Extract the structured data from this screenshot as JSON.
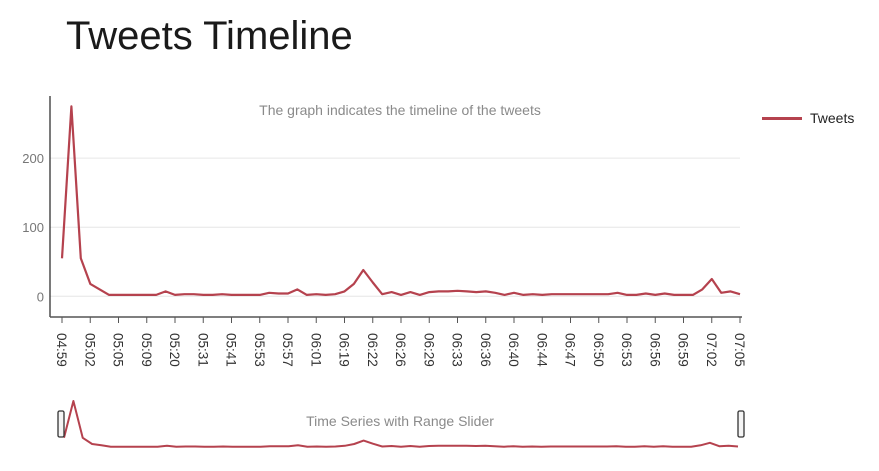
{
  "page": {
    "title": "Tweets Timeline"
  },
  "legend": {
    "label": "Tweets",
    "color": "#b5424e"
  },
  "chart_data": {
    "type": "line",
    "title": "The graph indicates the timeline of the tweets",
    "xlabel": "",
    "ylabel": "",
    "ylim": [
      -30,
      290
    ],
    "yticks": [
      0,
      100,
      200
    ],
    "grid": true,
    "legend_position": "top-right",
    "x_tick_labels": [
      "04:59",
      "05:02",
      "05:05",
      "05:09",
      "05:20",
      "05:31",
      "05:41",
      "05:53",
      "05:57",
      "06:01",
      "06:19",
      "06:22",
      "06:26",
      "06:29",
      "06:33",
      "06:36",
      "06:40",
      "06:44",
      "06:47",
      "06:50",
      "06:53",
      "06:56",
      "06:59",
      "07:02",
      "07:05"
    ],
    "series": [
      {
        "name": "Tweets",
        "color": "#b5424e",
        "values": [
          55,
          275,
          55,
          18,
          10,
          2,
          2,
          2,
          2,
          2,
          2,
          7,
          2,
          3,
          3,
          2,
          2,
          3,
          2,
          2,
          2,
          2,
          5,
          4,
          4,
          10,
          2,
          3,
          2,
          3,
          7,
          18,
          38,
          20,
          3,
          6,
          2,
          6,
          2,
          6,
          7,
          7,
          8,
          7,
          6,
          7,
          5,
          2,
          5,
          2,
          3,
          2,
          3,
          3,
          3,
          3,
          3,
          3,
          3,
          5,
          2,
          2,
          4,
          2,
          4,
          2,
          2,
          2,
          10,
          25,
          5,
          7,
          3
        ]
      }
    ]
  },
  "range_slider": {
    "title": "Time Series with Range Slider"
  }
}
